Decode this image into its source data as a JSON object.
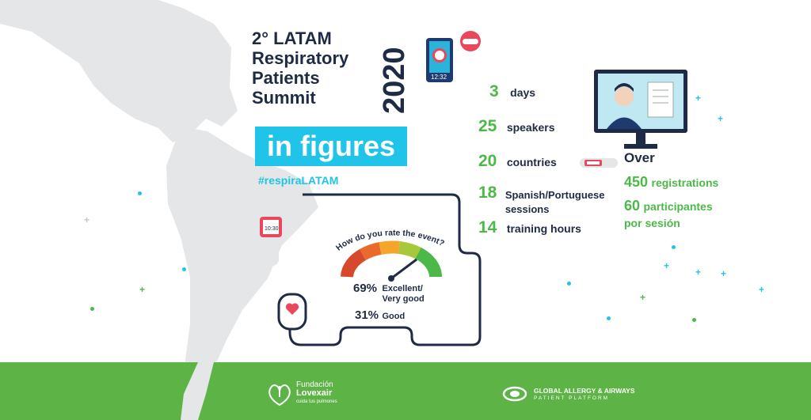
{
  "title": {
    "lines": [
      "2° LATAM",
      "Respiratory",
      "Patients",
      "Summit"
    ],
    "year": "2020",
    "in_figures": "in figures",
    "hashtag": "#respiraLATAM"
  },
  "device": {
    "clock": "12:32"
  },
  "wristband": {
    "clock": "10:30"
  },
  "stats": [
    {
      "value": "3",
      "label": "days"
    },
    {
      "value": "25",
      "label": "speakers"
    },
    {
      "value": "20",
      "label": "countries"
    },
    {
      "value": "18",
      "label": "Spanish/Portuguese",
      "label2": "sessions"
    },
    {
      "value": "14",
      "label": "training hours"
    }
  ],
  "registrations": {
    "over": "Over",
    "count": "450",
    "label": "registrations",
    "per_session_count": "60",
    "per_session_label": "participantes",
    "per_session_label2": "por sesión"
  },
  "rating": {
    "question": "How do you rate the event?",
    "excellent_pct": "69%",
    "excellent_label": "Excellent/",
    "excellent_label2": "Very good",
    "good_pct": "31%",
    "good_label": "Good"
  },
  "footer": {
    "lovexair_name": "Fundación",
    "lovexair_name2": "Lovexair",
    "lovexair_tag": "cuida tus pulmones",
    "gaapp_name": "GLOBAL ALLERGY & AIRWAYS",
    "gaapp_sub": "PATIENT PLATFORM"
  },
  "colors": {
    "cyan": "#20c4e8",
    "green": "#4cb848",
    "navy": "#1f2a44",
    "footer": "#5db345"
  }
}
